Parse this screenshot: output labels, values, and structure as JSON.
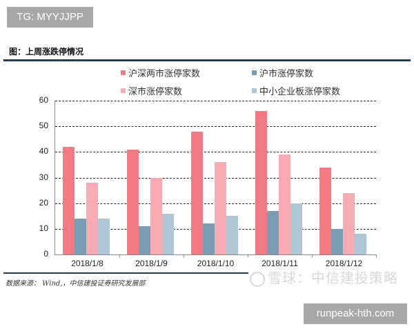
{
  "overlay": {
    "top_tag": "TG: MYYJJPP",
    "bottom_tag": "runpeak-hth.com",
    "watermark": "雪球：中信建投策略"
  },
  "figure": {
    "title": "图：上周涨跌停情况",
    "source": "数据来源：  Wind,，中信建投证券研究发展部"
  },
  "chart_data": {
    "type": "bar",
    "title": "图：上周涨跌停情况",
    "xlabel": "",
    "ylabel": "",
    "ylim": [
      0,
      60
    ],
    "yticks": [
      0,
      10,
      20,
      30,
      40,
      50,
      60
    ],
    "grid": true,
    "legend_position": "top",
    "categories": [
      "2018/1/8",
      "2018/1/9",
      "2018/1/10",
      "2018/1/11",
      "2018/1/12"
    ],
    "series": [
      {
        "name": "沪深两市涨停家数",
        "color": "#f47a82",
        "values": [
          42,
          41,
          48,
          56,
          34
        ]
      },
      {
        "name": "沪市涨停家数",
        "color": "#7a9db5",
        "values": [
          14,
          11,
          12,
          17,
          10
        ]
      },
      {
        "name": "深市涨停家数",
        "color": "#f9aab2",
        "values": [
          28,
          30,
          36,
          39,
          24
        ]
      },
      {
        "name": "中小企业板涨停家数",
        "color": "#afc6d6",
        "values": [
          14,
          16,
          15,
          20,
          8
        ]
      }
    ]
  }
}
